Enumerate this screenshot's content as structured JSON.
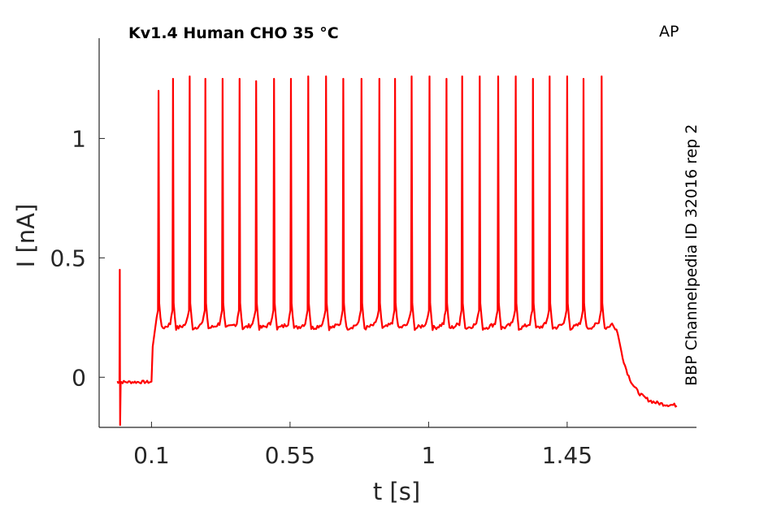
{
  "chart_data": {
    "type": "line",
    "title": "Kv1.4  Human  CHO  35 °C",
    "protocol_label": "AP",
    "side_note": "BBP Channelpedia ID 32016 rep 2",
    "xlabel": "t [s]",
    "ylabel": "I [nA]",
    "xlim": [
      -0.07,
      1.87
    ],
    "ylim": [
      -0.21,
      1.42
    ],
    "xticks": [
      0.1,
      0.55,
      1,
      1.45
    ],
    "xtick_labels": [
      "0.1",
      "0.55",
      "1",
      "1.45"
    ],
    "yticks": [
      0,
      0.5,
      1
    ],
    "ytick_labels": [
      "0",
      "0.5",
      "1"
    ],
    "grid": false,
    "color": "#ff0000",
    "series": [
      {
        "baseline_pre": -0.02,
        "artifact_t": -0.003,
        "artifact_peak": 0.45,
        "artifact_min": -0.2,
        "stim_on_t": 0.1,
        "stim_off_t": 1.61,
        "plateau_start": 0.28,
        "plateau_level": 0.22,
        "tail_level": -0.12,
        "trace_end_t": 1.81,
        "spike_times": [
          0.123,
          0.17,
          0.224,
          0.275,
          0.331,
          0.386,
          0.44,
          0.498,
          0.553,
          0.609,
          0.667,
          0.723,
          0.782,
          0.84,
          0.891,
          0.945,
          1.003,
          1.058,
          1.109,
          1.166,
          1.226,
          1.283,
          1.339,
          1.393,
          1.45,
          1.503,
          1.562
        ],
        "spike_peaks": [
          1.2,
          1.25,
          1.26,
          1.25,
          1.25,
          1.25,
          1.24,
          1.25,
          1.25,
          1.26,
          1.26,
          1.25,
          1.25,
          1.25,
          1.25,
          1.26,
          1.26,
          1.25,
          1.26,
          1.26,
          1.26,
          1.26,
          1.25,
          1.26,
          1.26,
          1.25,
          1.26
        ]
      }
    ]
  }
}
